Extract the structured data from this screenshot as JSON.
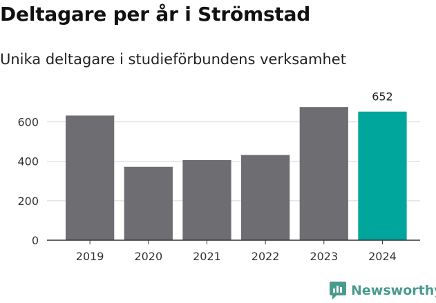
{
  "title": "Deltagare per år i Strömstad",
  "subtitle": "Unika deltagare i studieförbundens verksamhet",
  "brand": {
    "name": "Newsworthy",
    "logo_icon": "newsworthy-logo-icon",
    "color": "#4a9b8e"
  },
  "chart_data": {
    "type": "bar",
    "categories": [
      "2019",
      "2020",
      "2021",
      "2022",
      "2023",
      "2024"
    ],
    "values": [
      632,
      372,
      406,
      432,
      675,
      652
    ],
    "highlight_index": 5,
    "data_labels": [
      {
        "index": 5,
        "text": "652"
      }
    ],
    "yticks": [
      "0",
      "200",
      "400",
      "600"
    ],
    "ylim": [
      0,
      700
    ],
    "grid": true,
    "colors": {
      "bar": "#6e6d72",
      "highlight": "#00a59b",
      "grid": "#d6d6d6",
      "axis": "#333333"
    }
  }
}
